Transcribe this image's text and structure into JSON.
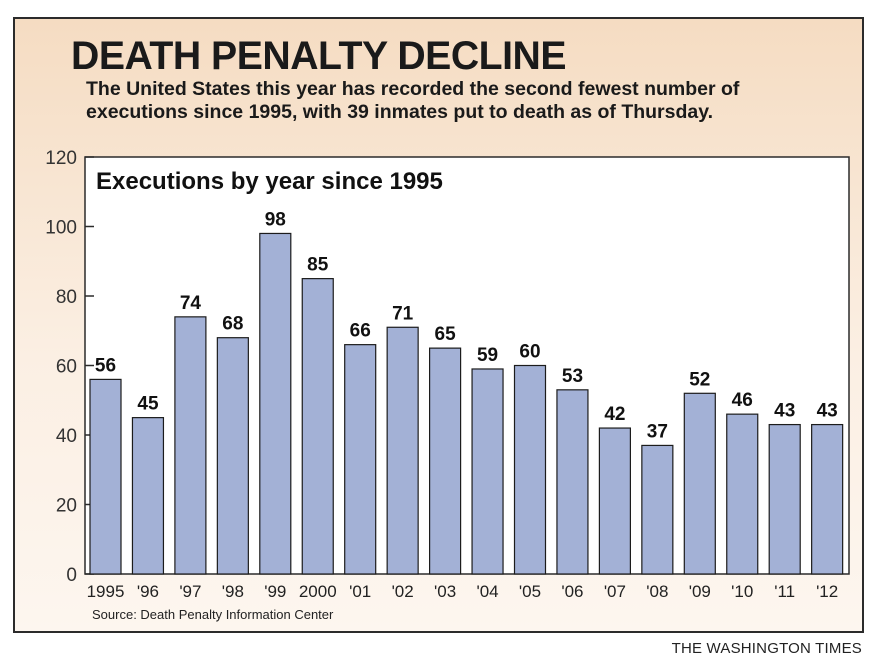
{
  "headline": "DEATH PENALTY DECLINE",
  "dek": "The United States this year has recorded the second fewest number of executions since 1995, with 39 inmates put to death as of Thursday.",
  "source": "Source: Death Penalty Information Center",
  "credit": "THE WASHINGTON TIMES",
  "colors": {
    "bar": "#a3b1d6",
    "bar_stroke": "#1c1c1c",
    "plot_bg": "#ffffff"
  },
  "chart_data": {
    "type": "bar",
    "title": "Executions by year since 1995",
    "categories": [
      "1995",
      "'96",
      "'97",
      "'98",
      "'99",
      "2000",
      "'01",
      "'02",
      "'03",
      "'04",
      "'05",
      "'06",
      "'07",
      "'08",
      "'09",
      "'10",
      "'11",
      "'12"
    ],
    "values": [
      56,
      45,
      74,
      68,
      98,
      85,
      66,
      71,
      65,
      59,
      60,
      53,
      42,
      37,
      52,
      46,
      43,
      43
    ],
    "data_labels": [
      "56",
      "45",
      "74",
      "68",
      "98",
      "85",
      "66",
      "71",
      "65",
      "59",
      "60",
      "53",
      "42",
      "37",
      "52",
      "46",
      "43",
      "43"
    ],
    "yticks": [
      "0",
      "20",
      "40",
      "60",
      "80",
      "100",
      "120"
    ],
    "xlabel": "",
    "ylabel": "",
    "ylim": [
      0,
      120
    ],
    "grid": false,
    "legend": "none"
  }
}
